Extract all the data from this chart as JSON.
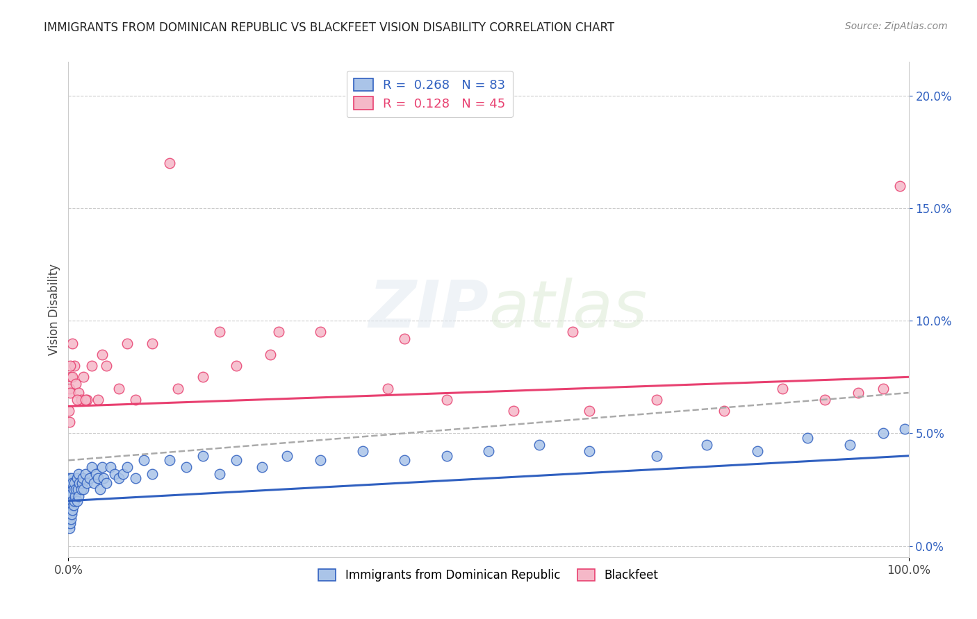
{
  "title": "IMMIGRANTS FROM DOMINICAN REPUBLIC VS BLACKFEET VISION DISABILITY CORRELATION CHART",
  "source": "Source: ZipAtlas.com",
  "ylabel": "Vision Disability",
  "blue_label": "Immigrants from Dominican Republic",
  "pink_label": "Blackfeet",
  "blue_R": 0.268,
  "blue_N": 83,
  "pink_R": 0.128,
  "pink_N": 45,
  "blue_color": "#aac4e8",
  "pink_color": "#f5b8c8",
  "blue_line_color": "#3060c0",
  "pink_line_color": "#e84070",
  "dash_color": "#aaaaaa",
  "xlim": [
    0.0,
    1.0
  ],
  "ylim": [
    -0.005,
    0.215
  ],
  "right_yticks": [
    0.0,
    0.05,
    0.1,
    0.15,
    0.2
  ],
  "right_yticklabels": [
    "0.0%",
    "5.0%",
    "10.0%",
    "15.0%",
    "20.0%"
  ],
  "blue_x": [
    0.0005,
    0.0005,
    0.0005,
    0.001,
    0.001,
    0.001,
    0.001,
    0.001,
    0.001,
    0.0015,
    0.0015,
    0.002,
    0.002,
    0.002,
    0.002,
    0.002,
    0.003,
    0.003,
    0.003,
    0.003,
    0.004,
    0.004,
    0.004,
    0.004,
    0.005,
    0.005,
    0.005,
    0.006,
    0.006,
    0.007,
    0.007,
    0.008,
    0.009,
    0.01,
    0.01,
    0.011,
    0.012,
    0.012,
    0.013,
    0.015,
    0.016,
    0.017,
    0.018,
    0.02,
    0.022,
    0.025,
    0.028,
    0.03,
    0.033,
    0.035,
    0.038,
    0.04,
    0.042,
    0.045,
    0.05,
    0.055,
    0.06,
    0.065,
    0.07,
    0.08,
    0.09,
    0.1,
    0.12,
    0.14,
    0.16,
    0.18,
    0.2,
    0.23,
    0.26,
    0.3,
    0.35,
    0.4,
    0.45,
    0.5,
    0.56,
    0.62,
    0.7,
    0.76,
    0.82,
    0.88,
    0.93,
    0.97,
    0.995
  ],
  "blue_y": [
    0.01,
    0.015,
    0.02,
    0.008,
    0.012,
    0.016,
    0.02,
    0.025,
    0.03,
    0.015,
    0.022,
    0.01,
    0.015,
    0.018,
    0.022,
    0.028,
    0.012,
    0.018,
    0.022,
    0.028,
    0.014,
    0.018,
    0.023,
    0.03,
    0.016,
    0.02,
    0.028,
    0.018,
    0.025,
    0.02,
    0.028,
    0.022,
    0.025,
    0.02,
    0.03,
    0.025,
    0.022,
    0.032,
    0.028,
    0.025,
    0.028,
    0.03,
    0.025,
    0.032,
    0.028,
    0.03,
    0.035,
    0.028,
    0.032,
    0.03,
    0.025,
    0.035,
    0.03,
    0.028,
    0.035,
    0.032,
    0.03,
    0.032,
    0.035,
    0.03,
    0.038,
    0.032,
    0.038,
    0.035,
    0.04,
    0.032,
    0.038,
    0.035,
    0.04,
    0.038,
    0.042,
    0.038,
    0.04,
    0.042,
    0.045,
    0.042,
    0.04,
    0.045,
    0.042,
    0.048,
    0.045,
    0.05,
    0.052
  ],
  "pink_x": [
    0.0005,
    0.001,
    0.001,
    0.002,
    0.003,
    0.005,
    0.007,
    0.009,
    0.012,
    0.015,
    0.018,
    0.022,
    0.028,
    0.035,
    0.045,
    0.06,
    0.08,
    0.1,
    0.13,
    0.16,
    0.2,
    0.24,
    0.3,
    0.38,
    0.45,
    0.53,
    0.62,
    0.7,
    0.78,
    0.85,
    0.9,
    0.94,
    0.97,
    0.99,
    0.002,
    0.005,
    0.01,
    0.02,
    0.04,
    0.07,
    0.12,
    0.18,
    0.25,
    0.4,
    0.6
  ],
  "pink_y": [
    0.06,
    0.055,
    0.07,
    0.068,
    0.075,
    0.075,
    0.08,
    0.072,
    0.068,
    0.065,
    0.075,
    0.065,
    0.08,
    0.065,
    0.08,
    0.07,
    0.065,
    0.09,
    0.07,
    0.075,
    0.08,
    0.085,
    0.095,
    0.07,
    0.065,
    0.06,
    0.06,
    0.065,
    0.06,
    0.07,
    0.065,
    0.068,
    0.07,
    0.16,
    0.08,
    0.09,
    0.065,
    0.065,
    0.085,
    0.09,
    0.17,
    0.095,
    0.095,
    0.092,
    0.095
  ],
  "blue_trend_x0": 0.0,
  "blue_trend_y0": 0.02,
  "blue_trend_x1": 1.0,
  "blue_trend_y1": 0.04,
  "pink_trend_x0": 0.0,
  "pink_trend_y0": 0.062,
  "pink_trend_x1": 1.0,
  "pink_trend_y1": 0.075,
  "dash_trend_x0": 0.0,
  "dash_trend_y0": 0.038,
  "dash_trend_x1": 1.0,
  "dash_trend_y1": 0.068
}
